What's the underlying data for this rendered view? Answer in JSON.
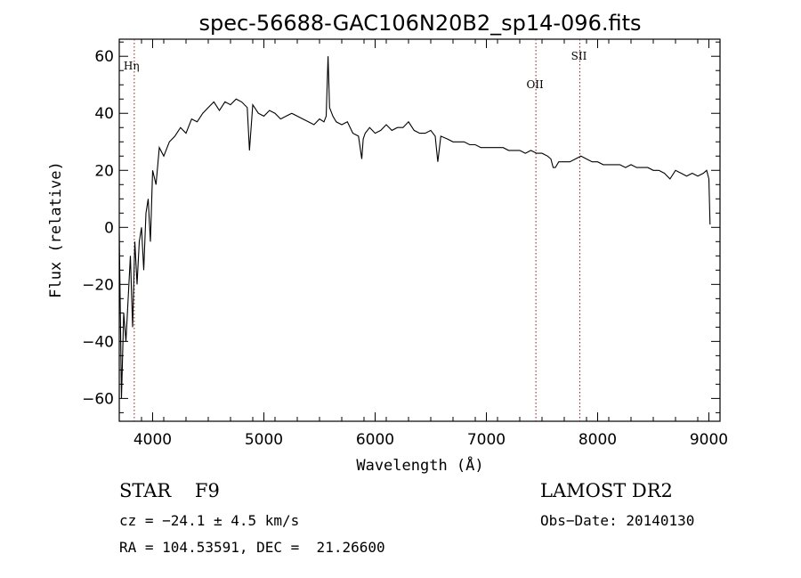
{
  "chart_data": {
    "type": "line",
    "title": "spec-56688-GAC106N20B2_sp14-096.fits",
    "xlabel": "Wavelength (Å)",
    "ylabel": "Flux (relative)",
    "xlim": [
      3700,
      9100
    ],
    "ylim": [
      -68,
      66
    ],
    "xticks": [
      4000,
      5000,
      6000,
      7000,
      8000,
      9000
    ],
    "yticks": [
      -60,
      -40,
      -20,
      0,
      20,
      40,
      60
    ],
    "grid": false,
    "line_color": "#000000",
    "marker_color": "#8b1a1a",
    "spectral_lines": [
      {
        "name": "Hη",
        "wavelength": 3835
      },
      {
        "name": "OII",
        "wavelength": 7445
      },
      {
        "name": "SII",
        "wavelength": 7840
      }
    ],
    "series": [
      {
        "x": [
          3700,
          3720,
          3740,
          3760,
          3780,
          3800,
          3820,
          3840,
          3860,
          3880,
          3900,
          3920,
          3940,
          3960,
          3980,
          4000,
          4030,
          4060,
          4100,
          4150,
          4200,
          4250,
          4300,
          4350,
          4400,
          4450,
          4500,
          4550,
          4600,
          4650,
          4700,
          4750,
          4800,
          4850,
          4870,
          4900,
          4950,
          5000,
          5050,
          5100,
          5150,
          5200,
          5250,
          5300,
          5350,
          5400,
          5450,
          5500,
          5540,
          5560,
          5577,
          5590,
          5620,
          5650,
          5700,
          5750,
          5800,
          5850,
          5880,
          5893,
          5910,
          5950,
          6000,
          6050,
          6100,
          6150,
          6200,
          6250,
          6300,
          6350,
          6400,
          6450,
          6500,
          6540,
          6563,
          6590,
          6650,
          6700,
          6750,
          6800,
          6850,
          6900,
          6950,
          7000,
          7050,
          7100,
          7150,
          7200,
          7250,
          7300,
          7350,
          7400,
          7450,
          7500,
          7550,
          7580,
          7600,
          7620,
          7650,
          7700,
          7750,
          7800,
          7850,
          7900,
          7950,
          8000,
          8050,
          8100,
          8150,
          8200,
          8250,
          8300,
          8350,
          8400,
          8450,
          8500,
          8550,
          8600,
          8650,
          8700,
          8750,
          8800,
          8850,
          8900,
          8950,
          8980,
          9000,
          9010
        ],
        "y": [
          -2,
          -60,
          -30,
          -40,
          -25,
          -10,
          -35,
          -5,
          -20,
          -5,
          0,
          -15,
          5,
          10,
          -5,
          20,
          15,
          28,
          25,
          30,
          32,
          35,
          33,
          38,
          37,
          40,
          42,
          44,
          41,
          44,
          43,
          45,
          44,
          42,
          27,
          43,
          40,
          39,
          41,
          40,
          38,
          39,
          40,
          39,
          38,
          37,
          36,
          38,
          37,
          39,
          60,
          42,
          39,
          37,
          36,
          37,
          33,
          32,
          24,
          31,
          33,
          35,
          33,
          34,
          36,
          34,
          35,
          35,
          37,
          34,
          33,
          33,
          34,
          32,
          23,
          32,
          31,
          30,
          30,
          30,
          29,
          29,
          28,
          28,
          28,
          28,
          28,
          27,
          27,
          27,
          26,
          27,
          26,
          26,
          25,
          24,
          21,
          21,
          23,
          23,
          23,
          24,
          25,
          24,
          23,
          23,
          22,
          22,
          22,
          22,
          21,
          22,
          21,
          21,
          21,
          20,
          20,
          19,
          17,
          20,
          19,
          18,
          19,
          18,
          19,
          20,
          17,
          1
        ]
      }
    ]
  },
  "info": {
    "class_line": "STAR    F9",
    "survey": "LAMOST DR2",
    "cz": "cz = −24.1 ± 4.5 km/s",
    "obs_date": "Obs−Date: 20140130",
    "radec": "RA = 104.53591, DEC =  21.26600"
  }
}
